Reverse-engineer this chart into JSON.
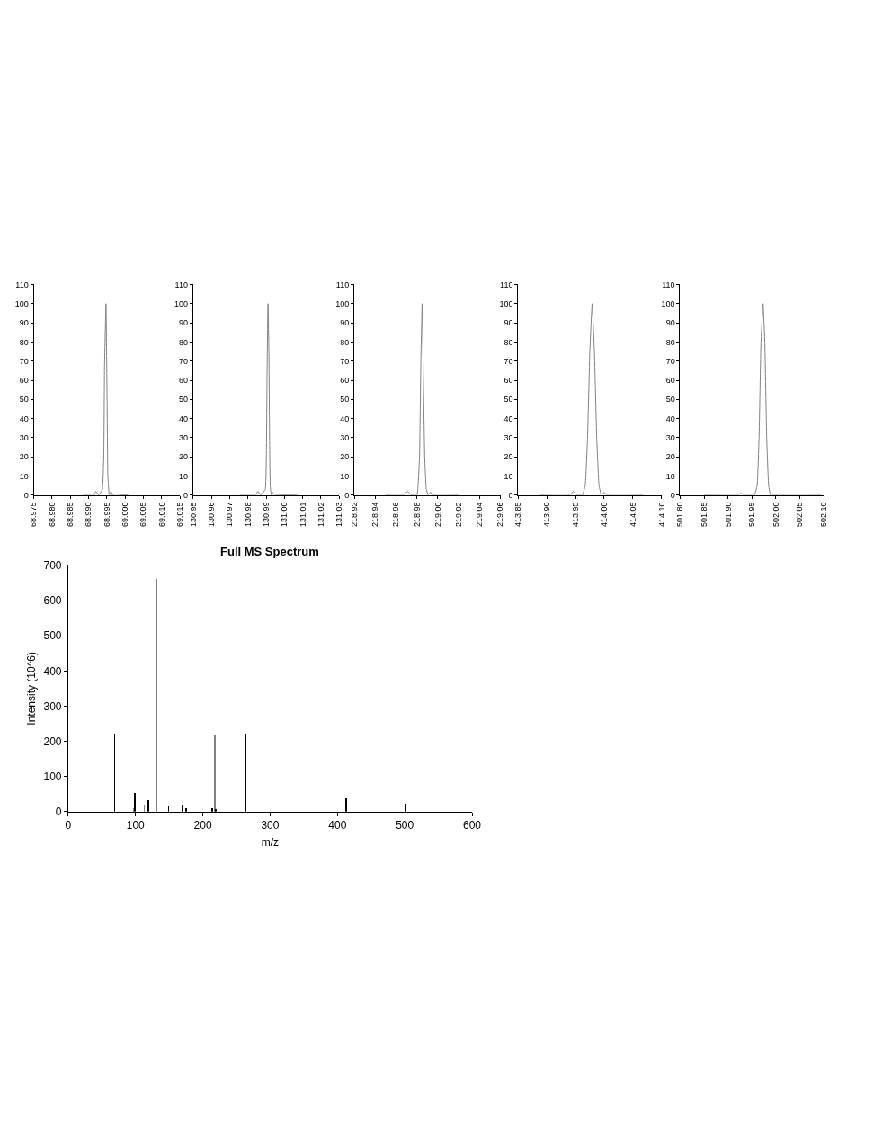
{
  "chart_data": [
    {
      "type": "line",
      "color": "#808080",
      "xlim": [
        68.975,
        69.015
      ],
      "xticks": [
        68.975,
        {
          "value": 68.98,
          "label": "68.980"
        },
        68.985,
        {
          "value": 68.99,
          "label": "68.990"
        },
        68.995,
        {
          "value": 69.0,
          "label": "69.000"
        },
        69.005,
        {
          "value": 69.01,
          "label": "69.010"
        },
        69.015
      ],
      "ylim": [
        0,
        110
      ],
      "yticks": [
        0,
        10,
        20,
        30,
        40,
        50,
        60,
        70,
        80,
        90,
        100,
        110
      ],
      "x": [
        68.9885,
        68.9915,
        68.992,
        68.9928,
        68.9938,
        68.9942,
        68.9944,
        68.9948,
        68.9951,
        68.9953,
        68.9957,
        68.9962,
        68.9966,
        68.9972,
        69.0009
      ],
      "values": [
        0,
        0,
        2,
        0,
        3,
        22,
        68,
        100,
        47,
        10,
        0,
        2,
        0,
        0.5,
        0
      ]
    },
    {
      "type": "line",
      "color": "#808080",
      "xlim": [
        130.95,
        131.03
      ],
      "xticks": [
        130.95,
        130.96,
        130.97,
        130.98,
        130.99,
        {
          "value": 131.0,
          "label": "131.00"
        },
        131.01,
        131.02,
        131.03
      ],
      "ylim": [
        0,
        110
      ],
      "yticks": [
        0,
        10,
        20,
        30,
        40,
        50,
        60,
        70,
        80,
        90,
        100,
        110
      ],
      "x": [
        130.9756,
        130.984,
        130.9855,
        130.987,
        130.9895,
        130.9902,
        130.9905,
        130.991,
        130.9915,
        130.9918,
        130.9922,
        130.9928,
        130.9935,
        130.994,
        131.0077
      ],
      "values": [
        0,
        0,
        2,
        0,
        3,
        28,
        64,
        100,
        75,
        37,
        5,
        0,
        1.5,
        0.5,
        0
      ]
    },
    {
      "type": "line",
      "color": "#808080",
      "xlim": [
        218.92,
        219.06
      ],
      "xticks": [
        218.92,
        218.94,
        218.96,
        218.98,
        {
          "value": 219.0,
          "label": "219.00"
        },
        219.02,
        219.04,
        219.06
      ],
      "ylim": [
        0,
        110
      ],
      "yticks": [
        0,
        10,
        20,
        30,
        40,
        50,
        60,
        70,
        80,
        90,
        100,
        110
      ],
      "x": [
        218.95,
        218.967,
        218.971,
        218.975,
        218.98,
        218.9825,
        218.9838,
        218.985,
        218.9862,
        218.9875,
        218.989,
        218.991,
        218.993,
        218.995,
        219.0196
      ],
      "values": [
        0,
        0,
        2,
        0,
        0,
        20,
        70,
        100,
        60,
        20,
        3,
        0,
        1.5,
        0,
        0
      ]
    },
    {
      "type": "line",
      "color": "#808080",
      "xlim": [
        413.85,
        414.1
      ],
      "xticks": [
        413.85,
        {
          "value": 413.9,
          "label": "413.90"
        },
        413.95,
        {
          "value": 414.0,
          "label": "414.00"
        },
        414.05,
        {
          "value": 414.1,
          "label": "414.10"
        }
      ],
      "ylim": [
        0,
        110
      ],
      "yticks": [
        0,
        10,
        20,
        30,
        40,
        50,
        60,
        70,
        80,
        90,
        100,
        110
      ],
      "x": [
        413.888,
        413.94,
        413.946,
        413.953,
        413.962,
        413.967,
        413.971,
        413.975,
        413.979,
        413.983,
        413.987,
        413.991,
        413.995,
        414.0,
        414.005,
        414.067
      ],
      "values": [
        0,
        0,
        2,
        0,
        0,
        5,
        30,
        75,
        100,
        75,
        30,
        5,
        0,
        1.5,
        0,
        0
      ]
    },
    {
      "type": "line",
      "color": "#808080",
      "xlim": [
        501.8,
        502.1
      ],
      "xticks": [
        {
          "value": 501.8,
          "label": "501.80"
        },
        501.85,
        {
          "value": 501.9,
          "label": "501.90"
        },
        501.95,
        {
          "value": 502.0,
          "label": "502.00"
        },
        502.05,
        {
          "value": 502.1,
          "label": "502.10"
        }
      ],
      "ylim": [
        0,
        110
      ],
      "yticks": [
        0,
        10,
        20,
        30,
        40,
        50,
        60,
        70,
        80,
        90,
        100,
        110
      ],
      "x": [
        501.8505,
        501.92,
        501.927,
        501.935,
        501.955,
        501.961,
        501.965,
        501.969,
        501.9734,
        501.977,
        501.981,
        501.985,
        501.989,
        502.003,
        502.008,
        502.013,
        502.095
      ],
      "values": [
        0,
        0,
        1,
        0,
        0,
        5,
        30,
        80,
        100,
        80,
        30,
        5,
        0,
        0,
        1,
        0,
        0
      ]
    },
    {
      "type": "bar",
      "title": "Full MS Spectrum",
      "xlabel": "m/z",
      "ylabel": "Intensity (10^6)",
      "xlim": [
        0,
        600
      ],
      "xticks": [
        0,
        100,
        200,
        300,
        400,
        500,
        600
      ],
      "ylim": [
        0,
        700
      ],
      "yticks": [
        0,
        100,
        200,
        300,
        400,
        500,
        600,
        700
      ],
      "x": [
        69,
        97,
        99,
        113,
        119,
        131,
        149,
        169,
        175,
        196,
        214,
        218,
        219,
        264,
        413,
        501
      ],
      "values": [
        220,
        10,
        53,
        21,
        34,
        661,
        15,
        18,
        10,
        111,
        10,
        216,
        8,
        223,
        38,
        24
      ],
      "colors": [
        "#000000",
        "#808080",
        "#000000",
        "#808080",
        "#000000",
        "#808080",
        "#000000",
        "#000000",
        "#000000",
        "#000000",
        "#000000",
        "#808080",
        "#000000",
        "#000000",
        "#000000",
        "#000000"
      ]
    }
  ]
}
